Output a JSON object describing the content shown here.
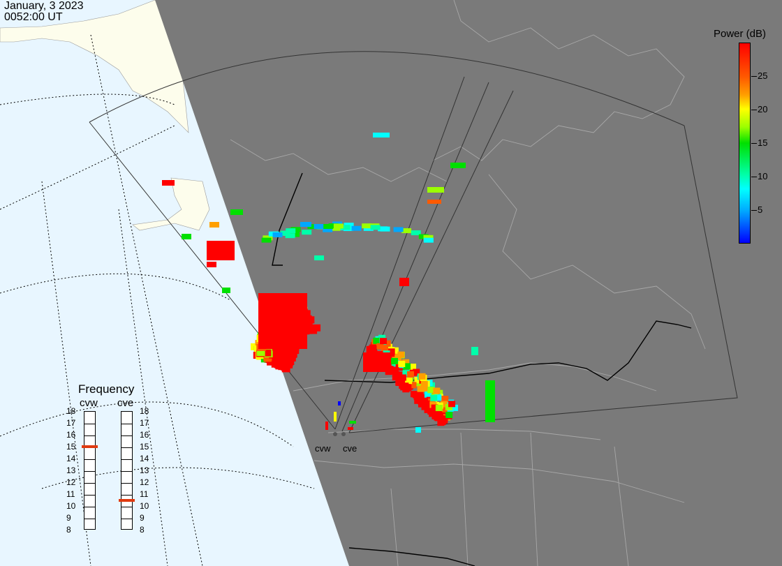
{
  "header": {
    "date": "January, 3 2023",
    "time": "0052:00 UT"
  },
  "colorbar": {
    "title": "Power (dB)",
    "ticks": [
      {
        "label": "25",
        "value": 25
      },
      {
        "label": "20",
        "value": 20
      },
      {
        "label": "15",
        "value": 15
      },
      {
        "label": "10",
        "value": 10
      },
      {
        "label": "5",
        "value": 5
      }
    ],
    "range": [
      0,
      30
    ],
    "colors": [
      "#0000ff",
      "#00a8ff",
      "#00ffff",
      "#00ffaa",
      "#00e000",
      "#9bff00",
      "#ffff00",
      "#ffa000",
      "#ff5a00",
      "#ff0000"
    ]
  },
  "frequency": {
    "title": "Frequency",
    "radars": [
      {
        "name": "cvw",
        "selected": 15
      },
      {
        "name": "cve",
        "selected": 10.5
      }
    ],
    "levels": [
      "18",
      "17",
      "16",
      "15",
      "14",
      "13",
      "12",
      "11",
      "10",
      "9",
      "8"
    ]
  },
  "sites": [
    {
      "name": "cvw"
    },
    {
      "name": "cve"
    }
  ],
  "map": {
    "ocean_color": "#e8f6ff",
    "land_color": "#fdfdec",
    "night_color": "#7a7a7a",
    "border_color": "#000000",
    "outline_color": "#b0b0b0"
  }
}
